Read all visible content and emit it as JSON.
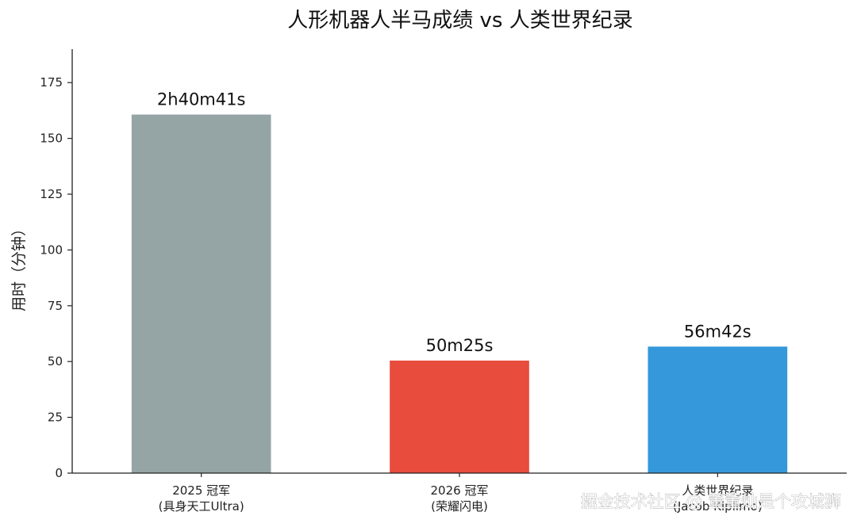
{
  "chart_data": {
    "type": "bar",
    "title": "人形机器人半马成绩 vs 人类世界纪录",
    "ylabel": "用时（分钟）",
    "xlabel": "",
    "ylim": [
      0,
      190
    ],
    "yticks": [
      0,
      25,
      50,
      75,
      100,
      125,
      150,
      175
    ],
    "grid": false,
    "categories": [
      [
        "2025 冠军",
        "(具身天工Ultra)"
      ],
      [
        "2026 冠军",
        "(荣耀闪电)"
      ],
      [
        "人类世界纪录",
        "(Jacob Kiplimo)"
      ]
    ],
    "values": [
      160.68,
      50.42,
      56.7
    ],
    "labels": [
      "2h40m41s",
      "50m25s",
      "56m42s"
    ],
    "colors": [
      "#95a5a6",
      "#e74c3c",
      "#3498db"
    ]
  },
  "watermark": "掘金技术社区 @ 董董灿是个攻城狮"
}
